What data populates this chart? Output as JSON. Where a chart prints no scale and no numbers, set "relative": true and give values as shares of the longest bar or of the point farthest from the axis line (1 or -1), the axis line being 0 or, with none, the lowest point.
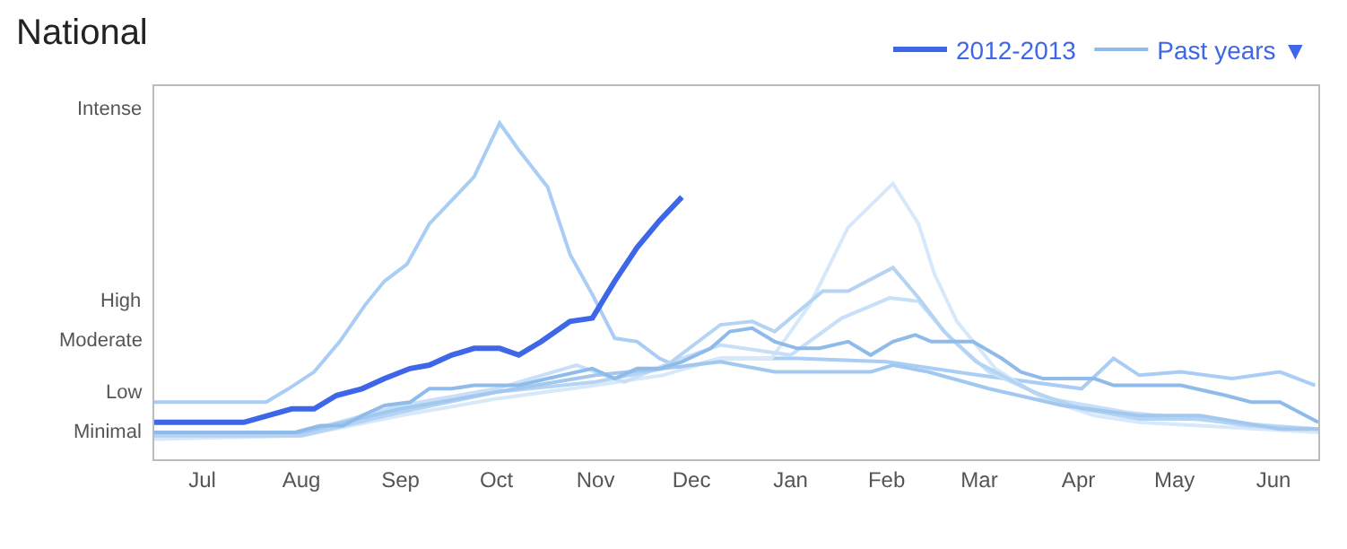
{
  "chart_data": {
    "type": "line",
    "title": "National",
    "legend": "top right",
    "relative": true,
    "xlim": [
      "2012-07-01",
      "2013-06-30"
    ],
    "xticks": [
      {
        "value": "2012-07-16",
        "label": "Jul"
      },
      {
        "value": "2012-08-16",
        "label": "Aug"
      },
      {
        "value": "2012-09-16",
        "label": "Sep"
      },
      {
        "value": "2012-10-16",
        "label": "Oct"
      },
      {
        "value": "2012-11-16",
        "label": "Nov"
      },
      {
        "value": "2012-12-16",
        "label": "Dec"
      },
      {
        "value": "2013-01-16",
        "label": "Jan"
      },
      {
        "value": "2013-02-15",
        "label": "Feb"
      },
      {
        "value": "2013-03-16",
        "label": "Mar"
      },
      {
        "value": "2013-04-16",
        "label": "Apr"
      },
      {
        "value": "2013-05-16",
        "label": "May"
      },
      {
        "value": "2013-06-16",
        "label": "Jun"
      }
    ],
    "annotations": [
      "Minimal",
      "Low",
      "Moderate",
      "High",
      "Intense"
    ],
    "series": [
      {
        "color": "#a9cdf5",
        "x": [
          "2012-07-01",
          "2012-08-05",
          "2012-08-12",
          "2012-08-20",
          "2012-08-28",
          "2012-09-05",
          "2012-09-11",
          "2012-09-18",
          "2012-09-25",
          "2012-10-02",
          "2012-10-09",
          "2012-10-17",
          "2012-10-23",
          "2012-11-01",
          "2012-11-08",
          "2012-11-15",
          "2012-11-22",
          "2012-11-29",
          "2012-12-06",
          "2012-12-13",
          "2012-12-25",
          "2013-01-18",
          "2013-02-15",
          "2013-03-16",
          "2013-04-17",
          "2013-04-27",
          "2013-05-05",
          "2013-05-18",
          "2013-06-03",
          "2013-06-18",
          "2013-06-29"
        ],
        "values": [
          0.17,
          0.17,
          0.21,
          0.26,
          0.35,
          0.46,
          0.53,
          0.58,
          0.7,
          0.77,
          0.84,
          1,
          0.92,
          0.81,
          0.61,
          0.49,
          0.36,
          0.35,
          0.3,
          0.27,
          0.3,
          0.3,
          0.29,
          0.25,
          0.21,
          0.3,
          0.25,
          0.26,
          0.24,
          0.26,
          0.22
        ]
      },
      {
        "color": "#d6e8fa",
        "x": [
          "2012-07-01",
          "2012-08-16",
          "2012-09-16",
          "2012-10-16",
          "2012-11-16",
          "2012-12-07",
          "2012-12-25",
          "2013-01-10",
          "2013-01-22",
          "2013-02-03",
          "2013-02-17",
          "2013-02-25",
          "2013-03-02",
          "2013-03-09",
          "2013-03-21",
          "2013-04-05",
          "2013-04-21",
          "2013-05-05",
          "2013-05-24",
          "2013-06-30"
        ],
        "values": [
          0.06,
          0.07,
          0.13,
          0.18,
          0.22,
          0.25,
          0.3,
          0.3,
          0.46,
          0.69,
          0.82,
          0.7,
          0.55,
          0.41,
          0.27,
          0.18,
          0.13,
          0.11,
          0.1,
          0.08
        ]
      },
      {
        "color": "#c7dff8",
        "x": [
          "2012-07-01",
          "2012-08-16",
          "2012-09-16",
          "2012-10-16",
          "2012-11-10",
          "2012-11-25",
          "2012-12-10",
          "2012-12-25",
          "2013-01-16",
          "2013-02-01",
          "2013-02-16",
          "2013-02-25",
          "2013-03-07",
          "2013-03-19",
          "2013-04-07",
          "2013-05-01",
          "2013-06-01",
          "2013-06-30"
        ],
        "values": [
          0.07,
          0.08,
          0.16,
          0.21,
          0.28,
          0.23,
          0.29,
          0.34,
          0.31,
          0.42,
          0.48,
          0.47,
          0.36,
          0.26,
          0.18,
          0.14,
          0.11,
          0.09
        ]
      },
      {
        "color": "#b5d4f4",
        "x": [
          "2012-07-01",
          "2012-08-16",
          "2012-09-16",
          "2012-10-16",
          "2012-11-16",
          "2012-12-07",
          "2012-12-25",
          "2013-01-04",
          "2013-01-11",
          "2013-01-26",
          "2013-02-03",
          "2013-02-17",
          "2013-02-25",
          "2013-03-05",
          "2013-03-15",
          "2013-04-02",
          "2013-04-17",
          "2013-05-05",
          "2013-05-24",
          "2013-06-08",
          "2013-06-30"
        ],
        "values": [
          0.07,
          0.07,
          0.14,
          0.2,
          0.23,
          0.27,
          0.4,
          0.41,
          0.38,
          0.5,
          0.5,
          0.57,
          0.48,
          0.38,
          0.29,
          0.2,
          0.15,
          0.12,
          0.12,
          0.1,
          0.09
        ]
      },
      {
        "color": "#a3c8f0",
        "x": [
          "2012-07-01",
          "2012-08-16",
          "2012-09-16",
          "2012-10-16",
          "2012-11-16",
          "2012-12-07",
          "2012-12-25",
          "2013-01-11",
          "2013-02-10",
          "2013-02-17",
          "2013-02-28",
          "2013-03-19",
          "2013-04-11",
          "2013-05-05",
          "2013-05-24",
          "2013-06-18",
          "2013-06-30"
        ],
        "values": [
          0.08,
          0.08,
          0.15,
          0.2,
          0.25,
          0.27,
          0.29,
          0.26,
          0.26,
          0.28,
          0.26,
          0.21,
          0.16,
          0.13,
          0.13,
          0.09,
          0.09
        ]
      },
      {
        "name": "Past years ▼",
        "color": "#8fbbea",
        "x": [
          "2012-07-01",
          "2012-08-14",
          "2012-08-22",
          "2012-08-29",
          "2012-09-04",
          "2012-09-11",
          "2012-09-19",
          "2012-09-25",
          "2012-10-02",
          "2012-10-09",
          "2012-10-23",
          "2012-11-01",
          "2012-11-15",
          "2012-11-22",
          "2012-11-29",
          "2012-12-06",
          "2012-12-13",
          "2012-12-22",
          "2012-12-28",
          "2013-01-04",
          "2013-01-11",
          "2013-01-18",
          "2013-01-25",
          "2013-02-03",
          "2013-02-10",
          "2013-02-17",
          "2013-02-24",
          "2013-03-01",
          "2013-03-14",
          "2013-03-23",
          "2013-03-29",
          "2013-04-05",
          "2013-04-21",
          "2013-04-27",
          "2013-05-18",
          "2013-06-01",
          "2013-06-09",
          "2013-06-18",
          "2013-06-30"
        ],
        "values": [
          0.08,
          0.08,
          0.1,
          0.1,
          0.13,
          0.16,
          0.17,
          0.21,
          0.21,
          0.22,
          0.22,
          0.24,
          0.27,
          0.24,
          0.27,
          0.27,
          0.29,
          0.33,
          0.38,
          0.39,
          0.35,
          0.33,
          0.33,
          0.35,
          0.31,
          0.35,
          0.37,
          0.35,
          0.35,
          0.3,
          0.26,
          0.24,
          0.24,
          0.22,
          0.22,
          0.19,
          0.17,
          0.17,
          0.11
        ]
      },
      {
        "name": "2012-2013",
        "color": "#3d66e8",
        "x": [
          "2012-07-01",
          "2012-07-29",
          "2012-08-13",
          "2012-08-20",
          "2012-08-27",
          "2012-09-04",
          "2012-09-11",
          "2012-09-19",
          "2012-09-25",
          "2012-10-02",
          "2012-10-09",
          "2012-10-17",
          "2012-10-23",
          "2012-10-30",
          "2012-11-08",
          "2012-11-15",
          "2012-11-22",
          "2012-11-29",
          "2012-12-06",
          "2012-12-13"
        ],
        "values": [
          0.11,
          0.11,
          0.15,
          0.15,
          0.19,
          0.21,
          0.24,
          0.27,
          0.28,
          0.31,
          0.33,
          0.33,
          0.31,
          0.35,
          0.41,
          0.42,
          0.53,
          0.63,
          0.71,
          0.78
        ]
      }
    ]
  }
}
